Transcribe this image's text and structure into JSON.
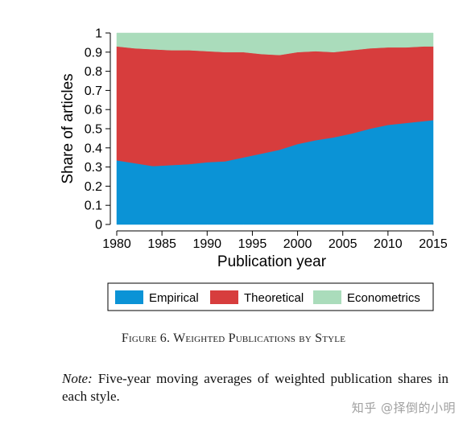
{
  "chart_data": {
    "type": "area",
    "stacked": true,
    "title": "",
    "xlabel": "Publication year",
    "ylabel": "Share of articles",
    "xlim": [
      1980,
      2015
    ],
    "ylim": [
      0,
      1
    ],
    "x_ticks": [
      "1980",
      "1985",
      "1990",
      "1995",
      "2000",
      "2005",
      "2010",
      "2015"
    ],
    "y_ticks": [
      "0",
      "0.1",
      "0.2",
      "0.3",
      "0.4",
      "0.5",
      "0.6",
      "0.7",
      "0.8",
      "0.9",
      "1"
    ],
    "grid": false,
    "legend_position": "bottom",
    "x": [
      1980,
      1982,
      1984,
      1986,
      1988,
      1990,
      1992,
      1994,
      1996,
      1998,
      2000,
      2002,
      2004,
      2006,
      2008,
      2010,
      2012,
      2014,
      2015
    ],
    "series": [
      {
        "name": "Empirical",
        "color": "#0b93d6",
        "values": [
          0.335,
          0.32,
          0.305,
          0.31,
          0.315,
          0.325,
          0.33,
          0.35,
          0.37,
          0.39,
          0.42,
          0.44,
          0.455,
          0.475,
          0.5,
          0.52,
          0.53,
          0.54,
          0.545
        ]
      },
      {
        "name": "Theoretical",
        "color": "#d73d3d",
        "values": [
          0.595,
          0.6,
          0.61,
          0.6,
          0.595,
          0.58,
          0.57,
          0.55,
          0.52,
          0.495,
          0.48,
          0.465,
          0.445,
          0.435,
          0.42,
          0.405,
          0.395,
          0.39,
          0.385
        ]
      },
      {
        "name": "Econometrics",
        "color": "#aadcbb",
        "values": [
          0.07,
          0.08,
          0.085,
          0.09,
          0.09,
          0.095,
          0.1,
          0.1,
          0.11,
          0.115,
          0.1,
          0.095,
          0.1,
          0.09,
          0.08,
          0.075,
          0.075,
          0.07,
          0.07
        ]
      }
    ]
  },
  "caption": "Figure 6. Weighted Publications by Style",
  "note": {
    "label": "Note:",
    "text": "Five-year moving averages of weighted publication shares in each style."
  },
  "watermark": "知乎 @择倒的小明"
}
